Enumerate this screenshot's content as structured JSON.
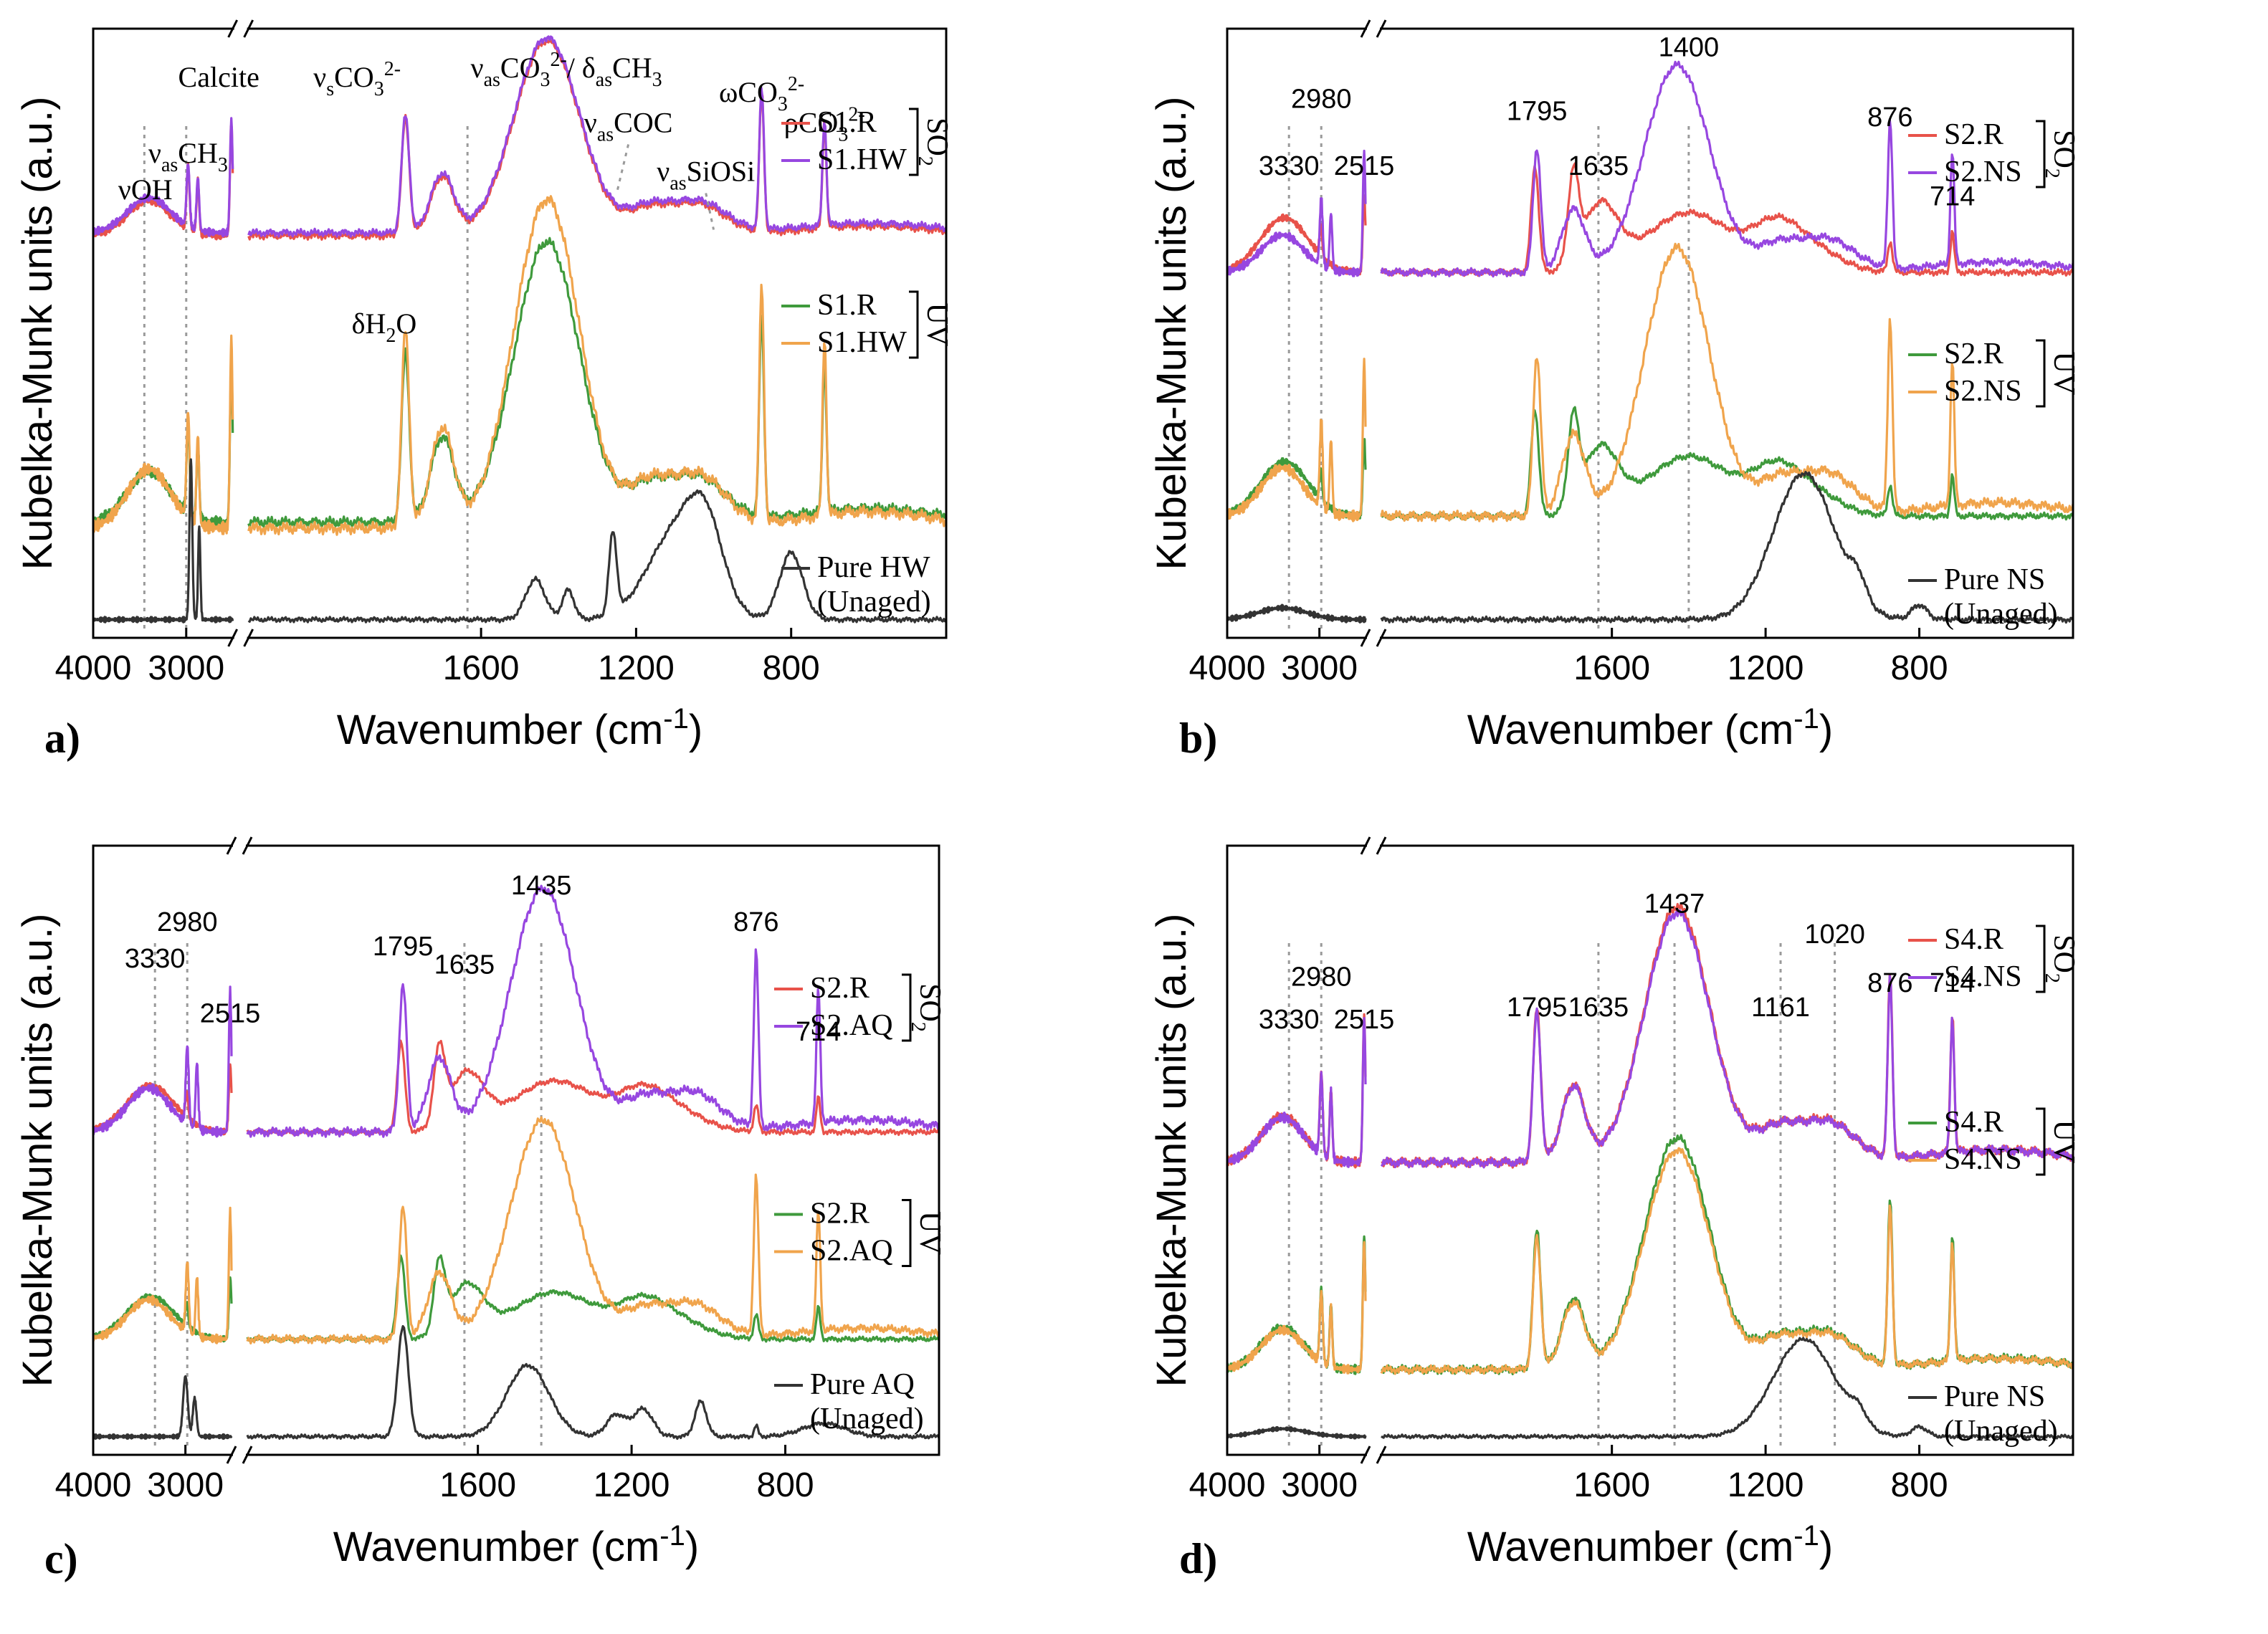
{
  "colors": {
    "S1.R": "#e8524a",
    "S1.HW": "#9747e0",
    "S2.R": "#e8524a",
    "S2.NS": "#9747e0",
    "S2.AQ": "#9747e0",
    "S4.R": "#e8524a",
    "S4.NS": "#9747e0",
    "uv_R": "#3f9a3c",
    "uv_B": "#f0a44c",
    "pure": "#333333"
  },
  "chart_data": [
    {
      "panel": "a)",
      "type": "line",
      "xlabel": "Wavenumber (cm-1)",
      "ylabel": "Kubelka-Munk units (a.u.)",
      "x_breaks": [
        [
          2500,
          2200
        ]
      ],
      "x_ticks": [
        4000,
        3000,
        1600,
        1200,
        800
      ],
      "annotations": [
        "νOH",
        "νasCH3",
        "Calcite",
        "νsCO32-",
        "νasCO32-/ δasCH3",
        "νasCOC",
        "νasSiOSi",
        "ωCO32-",
        "ρCO32-",
        "δH2O"
      ],
      "guides": [
        3450,
        3000,
        1635
      ],
      "groups": [
        {
          "label": "SO2",
          "series": [
            {
              "name": "S1.R",
              "ckey": "S1.R",
              "off": 0.66,
              "sc": 0.32,
              "base": "calc"
            },
            {
              "name": "S1.HW",
              "ckey": "S1.HW",
              "off": 0.665,
              "sc": 0.32,
              "base": "calc"
            }
          ]
        },
        {
          "label": "UV",
          "series": [
            {
              "name": "S1.R",
              "ckey": "uv_R",
              "off": 0.19,
              "sc": 0.46,
              "base": "calc"
            },
            {
              "name": "S1.HW",
              "ckey": "uv_B",
              "off": 0.18,
              "sc": 0.54,
              "base": "calc"
            }
          ]
        },
        {
          "label": "",
          "series": [
            {
              "name": "Pure HW",
              "sub": "(Unaged)",
              "ckey": "pure",
              "off": 0.03,
              "sc": 0.22,
              "base": "hw"
            }
          ]
        }
      ]
    },
    {
      "panel": "b)",
      "type": "line",
      "xlabel": "Wavenumber (cm-1)",
      "ylabel": "Kubelka-Munk units (a.u.)",
      "x_breaks": [
        [
          2500,
          2200
        ]
      ],
      "x_ticks": [
        4000,
        3000,
        1600,
        1200,
        800
      ],
      "peak_labels": [
        "3330",
        "2980",
        "2515",
        "1795",
        "1635",
        "1400",
        "876",
        "714"
      ],
      "guides": [
        3330,
        2980,
        1635,
        1400
      ],
      "groups": [
        {
          "label": "SO2",
          "series": [
            {
              "name": "S2.R",
              "ckey": "S2.R",
              "off": 0.6,
              "sc": 0.28,
              "base": "gyp"
            },
            {
              "name": "S2.NS",
              "ckey": "S2.NS",
              "off": 0.6,
              "sc": 0.34,
              "base": "calc"
            }
          ]
        },
        {
          "label": "UV",
          "series": [
            {
              "name": "S2.R",
              "ckey": "uv_R",
              "off": 0.2,
              "sc": 0.28,
              "base": "gyp"
            },
            {
              "name": "S2.NS",
              "ckey": "uv_B",
              "off": 0.2,
              "sc": 0.44,
              "base": "calc"
            }
          ]
        },
        {
          "label": "",
          "series": [
            {
              "name": "Pure NS",
              "sub": "(Unaged)",
              "ckey": "pure",
              "off": 0.03,
              "sc": 0.24,
              "base": "ns"
            }
          ]
        }
      ]
    },
    {
      "panel": "c)",
      "type": "line",
      "xlabel": "Wavenumber (cm-1)",
      "ylabel": "Kubelka-Munk units (a.u.)",
      "x_breaks": [
        [
          2500,
          2200
        ]
      ],
      "x_ticks": [
        4000,
        3000,
        1600,
        1200,
        800
      ],
      "peak_labels": [
        "3330",
        "2980",
        "2515",
        "1795",
        "1635",
        "1435",
        "876",
        "714"
      ],
      "guides": [
        3330,
        2980,
        1635,
        1435
      ],
      "groups": [
        {
          "label": "SO2",
          "series": [
            {
              "name": "S2.R",
              "ckey": "S2.R",
              "off": 0.53,
              "sc": 0.24,
              "base": "gyp"
            },
            {
              "name": "S2.AQ",
              "ckey": "S2.AQ",
              "off": 0.53,
              "sc": 0.4,
              "base": "calc"
            }
          ]
        },
        {
          "label": "UV",
          "series": [
            {
              "name": "S2.R",
              "ckey": "uv_R",
              "off": 0.19,
              "sc": 0.22,
              "base": "gyp"
            },
            {
              "name": "S2.AQ",
              "ckey": "uv_B",
              "off": 0.19,
              "sc": 0.36,
              "base": "calc"
            }
          ]
        },
        {
          "label": "",
          "series": [
            {
              "name": "Pure AQ",
              "sub": "(Unaged)",
              "ckey": "pure",
              "off": 0.03,
              "sc": 0.18,
              "base": "aq"
            }
          ]
        }
      ]
    },
    {
      "panel": "d)",
      "type": "line",
      "xlabel": "Wavenumber (cm-1)",
      "ylabel": "Kubelka-Munk units (a.u.)",
      "x_breaks": [
        [
          2500,
          2200
        ]
      ],
      "x_ticks": [
        4000,
        3000,
        1600,
        1200,
        800
      ],
      "peak_labels": [
        "3330",
        "2980",
        "2515",
        "1795",
        "1635",
        "1437",
        "1161",
        "1020",
        "876",
        "714"
      ],
      "guides": [
        3330,
        2980,
        1635,
        1437,
        1161,
        1020
      ],
      "groups": [
        {
          "label": "SO2",
          "series": [
            {
              "name": "S4.R",
              "ckey": "S4.R",
              "off": 0.48,
              "sc": 0.42,
              "base": "calc"
            },
            {
              "name": "S4.NS",
              "ckey": "S4.NS",
              "off": 0.48,
              "sc": 0.41,
              "base": "calc"
            }
          ]
        },
        {
          "label": "UV",
          "series": [
            {
              "name": "S4.R",
              "ckey": "uv_R",
              "off": 0.14,
              "sc": 0.38,
              "base": "calc"
            },
            {
              "name": "S4.NS",
              "ckey": "uv_B",
              "off": 0.14,
              "sc": 0.36,
              "base": "calc"
            }
          ]
        },
        {
          "label": "",
          "series": [
            {
              "name": "Pure NS",
              "sub": "(Unaged)",
              "ckey": "pure",
              "off": 0.03,
              "sc": 0.16,
              "base": "ns"
            }
          ]
        }
      ]
    }
  ]
}
